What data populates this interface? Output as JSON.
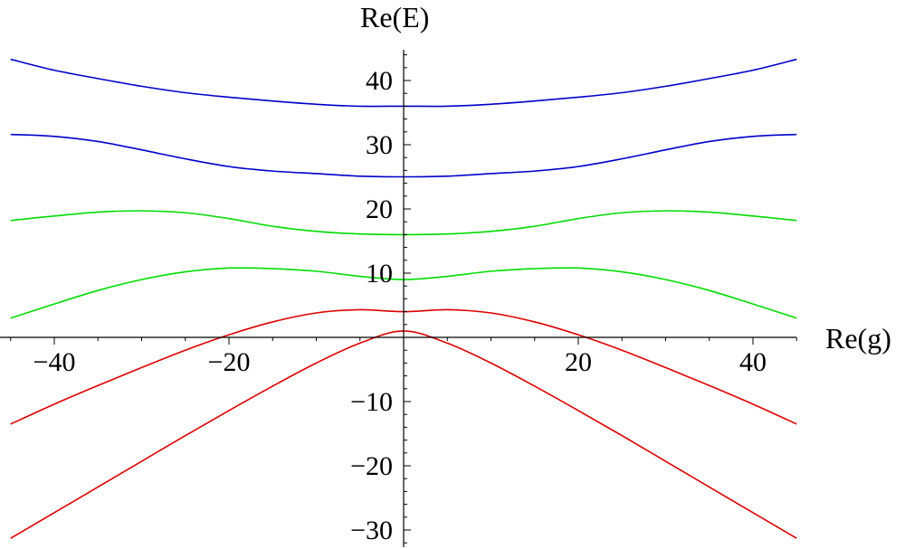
{
  "chart_data": {
    "type": "line",
    "xlabel": "Re(g)",
    "ylabel": "Re(E)",
    "xlim": [
      -45,
      45
    ],
    "ylim": [
      -32,
      45
    ],
    "x_ticks": [
      -40,
      -20,
      20,
      40
    ],
    "x_tick_labels": [
      "−40",
      "−20",
      "20",
      "40"
    ],
    "y_ticks": [
      -30,
      -20,
      -10,
      10,
      20,
      30,
      40
    ],
    "y_tick_labels": [
      "−30",
      "−20",
      "−10",
      "10",
      "20",
      "30",
      "40"
    ],
    "grid": false,
    "x": [
      -45,
      -40,
      -35,
      -30,
      -25,
      -20,
      -15,
      -10,
      -5,
      0,
      5,
      10,
      15,
      20,
      25,
      30,
      35,
      40,
      45
    ],
    "series": [
      {
        "color": "#0000cc",
        "values": [
          43.3,
          41.6,
          40.3,
          39.1,
          38.1,
          37.4,
          36.8,
          36.3,
          36.0,
          36.0,
          36.0,
          36.3,
          36.8,
          37.4,
          38.1,
          39.1,
          40.3,
          41.6,
          43.3
        ]
      },
      {
        "color": "#0000cc",
        "values": [
          31.6,
          31.3,
          30.5,
          29.2,
          27.8,
          26.6,
          25.9,
          25.5,
          25.1,
          25.0,
          25.1,
          25.5,
          25.9,
          26.6,
          27.8,
          29.2,
          30.5,
          31.3,
          31.6
        ]
      },
      {
        "color": "#00dd00",
        "values": [
          18.2,
          18.9,
          19.5,
          19.7,
          19.4,
          18.5,
          17.3,
          16.5,
          16.1,
          16.0,
          16.1,
          16.5,
          17.3,
          18.5,
          19.4,
          19.7,
          19.5,
          18.9,
          18.2
        ]
      },
      {
        "color": "#00dd00",
        "values": [
          3.0,
          5.2,
          7.3,
          9.0,
          10.2,
          10.8,
          10.7,
          10.3,
          9.5,
          9.0,
          9.5,
          10.3,
          10.7,
          10.8,
          10.2,
          9.0,
          7.3,
          5.2,
          3.0
        ]
      },
      {
        "color": "#dd0000",
        "values": [
          -13.5,
          -10.4,
          -7.5,
          -4.7,
          -2.0,
          0.4,
          2.4,
          3.8,
          4.3,
          4.0,
          4.3,
          3.8,
          2.4,
          0.4,
          -2.0,
          -4.7,
          -7.5,
          -10.4,
          -13.5
        ]
      },
      {
        "color": "#dd0000",
        "values": [
          -31.3,
          -27.3,
          -23.3,
          -19.3,
          -15.3,
          -11.4,
          -7.6,
          -4.0,
          -0.9,
          1.0,
          -0.9,
          -4.0,
          -7.6,
          -11.4,
          -15.3,
          -19.3,
          -23.3,
          -27.3,
          -31.3
        ]
      }
    ]
  }
}
